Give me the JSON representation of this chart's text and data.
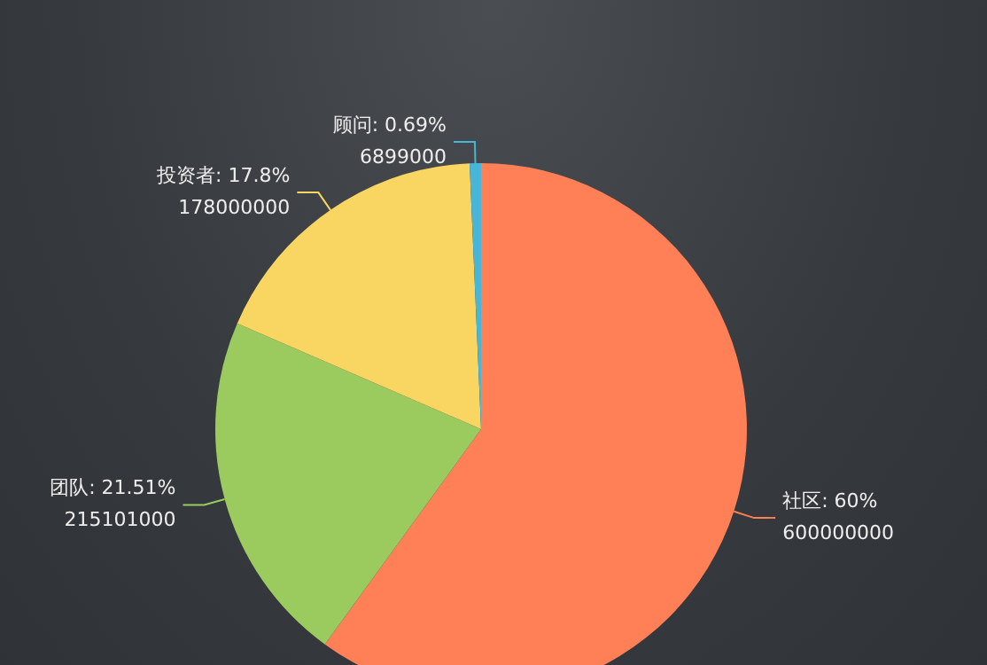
{
  "chart_data": {
    "type": "pie",
    "categories": [
      "社区",
      "团队",
      "投资者",
      "顾问"
    ],
    "values": [
      60,
      21.51,
      17.8,
      0.69
    ],
    "value_labels": [
      "60%\n600000000",
      "21.51%\n215101000",
      "17.8%\n178000000",
      "0.69%\n6899000"
    ],
    "colors": [
      "#ff7f57",
      "#9bcb5f",
      "#f9d562",
      "#47b6d8"
    ],
    "legend": false
  }
}
